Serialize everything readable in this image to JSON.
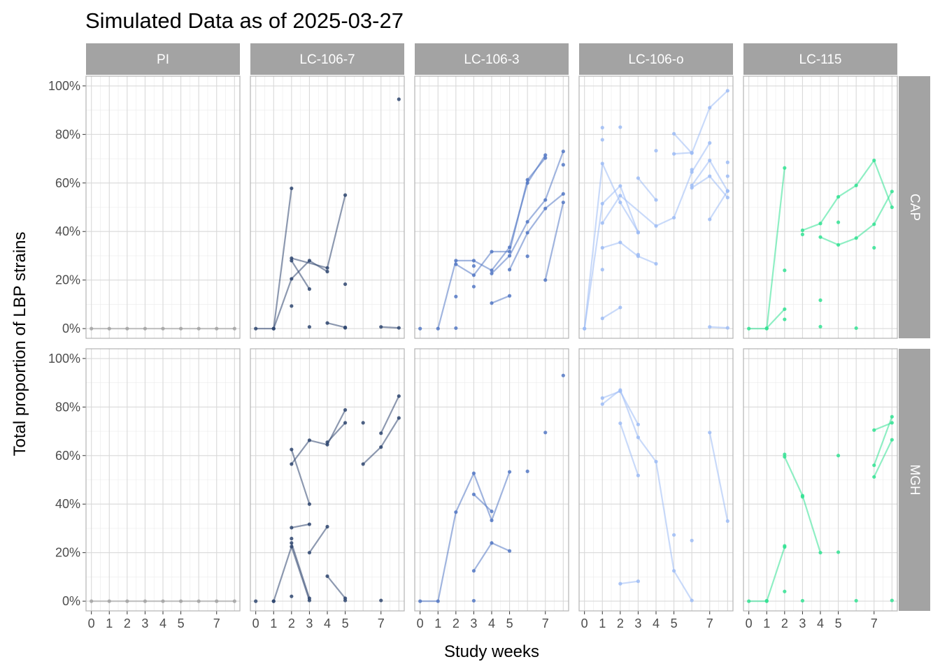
{
  "chart_data": {
    "type": "line",
    "title": "Simulated Data as of 2025-03-27",
    "xlabel": "Study weeks",
    "ylabel": "Total proportion of LBP strains",
    "xlim": [
      -0.3,
      8.3
    ],
    "ylim": [
      -4,
      104
    ],
    "x_ticks": [
      0,
      1,
      2,
      3,
      4,
      5,
      7
    ],
    "x_tick_labels": [
      "0",
      "1",
      "2",
      "3",
      "4",
      "5",
      "7"
    ],
    "y_ticks": [
      0,
      20,
      40,
      60,
      80,
      100
    ],
    "y_tick_labels": [
      "0%",
      "20%",
      "40%",
      "60%",
      "80%",
      "100%"
    ],
    "grid": true,
    "columns": [
      "PI",
      "LC-106-7",
      "LC-106-3",
      "LC-106-o",
      "LC-115"
    ],
    "rows": [
      "CAP",
      "MGH"
    ],
    "colors": {
      "PI": "#a3a3a3",
      "LC-106-7": "#2f4670",
      "LC-106-3": "#5478c4",
      "LC-106-o": "#9dbcf5",
      "LC-115": "#33e293"
    },
    "panels": [
      {
        "column": "PI",
        "row": "CAP",
        "lines": [
          [
            [
              0,
              0
            ],
            [
              1,
              0
            ],
            [
              2,
              0
            ],
            [
              3,
              0
            ],
            [
              4,
              0
            ],
            [
              5,
              0
            ],
            [
              6,
              0
            ],
            [
              7,
              0
            ],
            [
              8,
              0
            ]
          ]
        ],
        "points": []
      },
      {
        "column": "LC-106-7",
        "row": "CAP",
        "lines": [
          [
            [
              0,
              0
            ],
            [
              1,
              0
            ],
            [
              2,
              57.8
            ]
          ],
          [
            [
              1,
              0
            ],
            [
              2,
              20.5
            ],
            [
              3,
              28
            ],
            [
              4,
              23.5
            ]
          ],
          [
            [
              2,
              28
            ],
            [
              3,
              16.3
            ]
          ],
          [
            [
              2,
              29
            ],
            [
              4,
              25
            ],
            [
              5,
              55
            ]
          ],
          [
            [
              4,
              2.3
            ],
            [
              5,
              0.5
            ]
          ],
          [
            [
              7,
              0.7
            ],
            [
              8,
              0.3
            ]
          ]
        ],
        "points": [
          [
            2,
            9.3
          ],
          [
            3,
            0.7
          ],
          [
            5,
            18.3
          ],
          [
            5,
            0.3
          ],
          [
            8,
            94.5
          ]
        ]
      },
      {
        "column": "LC-106-3",
        "row": "CAP",
        "lines": [
          [
            [
              1,
              0
            ],
            [
              2,
              28
            ],
            [
              3,
              28
            ],
            [
              4,
              24
            ],
            [
              5,
              33.5
            ],
            [
              6,
              60
            ],
            [
              7,
              71.5
            ]
          ],
          [
            [
              2,
              26.5
            ],
            [
              3,
              22
            ],
            [
              4,
              31.7
            ],
            [
              5,
              31.7
            ],
            [
              6,
              61.3
            ],
            [
              7,
              70.3
            ]
          ],
          [
            [
              4,
              10.5
            ],
            [
              5,
              13.5
            ]
          ],
          [
            [
              4,
              22.7
            ],
            [
              5,
              30
            ],
            [
              6,
              44
            ],
            [
              7,
              53
            ],
            [
              8,
              73
            ]
          ],
          [
            [
              5,
              24.3
            ],
            [
              6,
              39.5
            ],
            [
              7,
              49.5
            ],
            [
              8,
              55.5
            ]
          ],
          [
            [
              7,
              20
            ],
            [
              8,
              52
            ]
          ]
        ],
        "points": [
          [
            0,
            0
          ],
          [
            2,
            13.2
          ],
          [
            2,
            0.2
          ],
          [
            3,
            25.8
          ],
          [
            3,
            17.3
          ],
          [
            6,
            29.8
          ],
          [
            8,
            67.5
          ]
        ]
      },
      {
        "column": "LC-106-o",
        "row": "CAP",
        "lines": [
          [
            [
              0,
              0
            ],
            [
              1,
              51.5
            ],
            [
              2,
              58.8
            ],
            [
              3,
              39.5
            ]
          ],
          [
            [
              0,
              0
            ],
            [
              1,
              68
            ],
            [
              2,
              52
            ],
            [
              3,
              39.8
            ]
          ],
          [
            [
              1,
              43.5
            ],
            [
              2,
              54.8
            ],
            [
              4,
              42.3
            ],
            [
              5,
              45.7
            ],
            [
              6,
              64.5
            ],
            [
              7,
              76.5
            ]
          ],
          [
            [
              1,
              33.3
            ],
            [
              2,
              35.5
            ],
            [
              3,
              29.8
            ],
            [
              4,
              26.7
            ]
          ],
          [
            [
              1,
              4.2
            ],
            [
              2,
              8.7
            ]
          ],
          [
            [
              3,
              62
            ],
            [
              4,
              53
            ]
          ],
          [
            [
              5,
              80.3
            ],
            [
              6,
              72.3
            ],
            [
              7,
              91
            ],
            [
              8,
              98
            ]
          ],
          [
            [
              5,
              72
            ],
            [
              6,
              72.5
            ]
          ],
          [
            [
              6,
              58
            ],
            [
              7,
              62.8
            ],
            [
              8,
              54
            ]
          ],
          [
            [
              6,
              59
            ],
            [
              7,
              69.3
            ],
            [
              8,
              56.7
            ]
          ],
          [
            [
              7,
              45
            ],
            [
              8,
              56.7
            ]
          ],
          [
            [
              7,
              0.7
            ],
            [
              8,
              0.3
            ]
          ]
        ],
        "points": [
          [
            1,
            82.8
          ],
          [
            1,
            77.8
          ],
          [
            1,
            24.3
          ],
          [
            2,
            83
          ],
          [
            3,
            30.5
          ],
          [
            4,
            73.3
          ],
          [
            6,
            65.5
          ],
          [
            8,
            68.5
          ],
          [
            8,
            62.8
          ]
        ]
      },
      {
        "column": "LC-115",
        "row": "CAP",
        "lines": [
          [
            [
              0,
              0
            ],
            [
              1,
              0
            ],
            [
              2,
              66.2
            ]
          ],
          [
            [
              1,
              0.2
            ],
            [
              2,
              8
            ]
          ],
          [
            [
              3,
              40.5
            ],
            [
              4,
              43.3
            ],
            [
              5,
              54.3
            ],
            [
              6,
              59
            ],
            [
              7,
              69.3
            ],
            [
              8,
              50
            ]
          ],
          [
            [
              4,
              37.7
            ],
            [
              5,
              34.5
            ],
            [
              6,
              37.3
            ],
            [
              7,
              43
            ],
            [
              8,
              56.5
            ]
          ]
        ],
        "points": [
          [
            2,
            24
          ],
          [
            2,
            3.8
          ],
          [
            3,
            38.8
          ],
          [
            4,
            11.7
          ],
          [
            4,
            0.8
          ],
          [
            5,
            43.8
          ],
          [
            6,
            0.2
          ],
          [
            7,
            33.3
          ]
        ]
      },
      {
        "column": "PI",
        "row": "MGH",
        "lines": [
          [
            [
              0,
              0
            ],
            [
              1,
              0
            ],
            [
              2,
              0
            ],
            [
              3,
              0
            ],
            [
              4,
              0
            ],
            [
              5,
              0
            ],
            [
              6,
              0
            ],
            [
              7,
              0
            ],
            [
              8,
              0
            ]
          ]
        ],
        "points": []
      },
      {
        "column": "LC-106-7",
        "row": "MGH",
        "lines": [
          [
            [
              1,
              0
            ],
            [
              2,
              22.5
            ],
            [
              3,
              0.3
            ]
          ],
          [
            [
              2,
              24
            ],
            [
              3,
              1.2
            ]
          ],
          [
            [
              2,
              56.5
            ],
            [
              3,
              66.3
            ],
            [
              4,
              64.5
            ],
            [
              5,
              78.8
            ]
          ],
          [
            [
              2,
              62.5
            ],
            [
              3,
              40
            ]
          ],
          [
            [
              2,
              30.3
            ],
            [
              3,
              31.7
            ]
          ],
          [
            [
              3,
              20
            ],
            [
              4,
              30.7
            ]
          ],
          [
            [
              4,
              10.3
            ],
            [
              5,
              1.2
            ]
          ],
          [
            [
              4,
              65.5
            ],
            [
              5,
              73.5
            ]
          ],
          [
            [
              6,
              56.5
            ],
            [
              7,
              63.5
            ],
            [
              8,
              75.5
            ]
          ],
          [
            [
              7,
              69.2
            ],
            [
              8,
              84.5
            ]
          ]
        ],
        "points": [
          [
            0,
            0
          ],
          [
            1,
            0
          ],
          [
            2,
            25.8
          ],
          [
            2,
            2
          ],
          [
            5,
            0.3
          ],
          [
            6,
            73.5
          ],
          [
            7,
            0.3
          ]
        ]
      },
      {
        "column": "LC-106-3",
        "row": "MGH",
        "lines": [
          [
            [
              0,
              0
            ],
            [
              1,
              0
            ],
            [
              2,
              36.7
            ],
            [
              3,
              52.7
            ],
            [
              4,
              33.3
            ],
            [
              5,
              53.3
            ]
          ],
          [
            [
              3,
              44
            ],
            [
              4,
              37
            ]
          ],
          [
            [
              3,
              12.5
            ],
            [
              4,
              24
            ],
            [
              5,
              20.7
            ]
          ]
        ],
        "points": [
          [
            3,
            0.2
          ],
          [
            6,
            53.5
          ],
          [
            7,
            69.5
          ],
          [
            8,
            93
          ]
        ]
      },
      {
        "column": "LC-106-o",
        "row": "MGH",
        "lines": [
          [
            [
              1,
              83.7
            ],
            [
              2,
              86.5
            ],
            [
              3,
              72.8
            ]
          ],
          [
            [
              1,
              81.2
            ],
            [
              2,
              87
            ],
            [
              3,
              67.5
            ],
            [
              4,
              57.5
            ],
            [
              5,
              12.5
            ],
            [
              6,
              0.3
            ]
          ],
          [
            [
              2,
              73.3
            ],
            [
              3,
              51.8
            ]
          ],
          [
            [
              2,
              7.2
            ],
            [
              3,
              8.2
            ]
          ],
          [
            [
              7,
              69.5
            ],
            [
              8,
              33
            ]
          ]
        ],
        "points": [
          [
            5,
            27.3
          ],
          [
            6,
            25
          ]
        ]
      },
      {
        "column": "LC-115",
        "row": "MGH",
        "lines": [
          [
            [
              0,
              0
            ],
            [
              1,
              0
            ],
            [
              2,
              22.3
            ]
          ],
          [
            [
              2,
              59.5
            ],
            [
              3,
              43.5
            ],
            [
              4,
              20
            ]
          ],
          [
            [
              7,
              56
            ],
            [
              8,
              76
            ]
          ],
          [
            [
              7,
              51.2
            ],
            [
              8,
              66.5
            ]
          ],
          [
            [
              7,
              70.5
            ],
            [
              8,
              73.5
            ]
          ]
        ],
        "points": [
          [
            1,
            0.2
          ],
          [
            2,
            60.5
          ],
          [
            2,
            22.8
          ],
          [
            2,
            4
          ],
          [
            3,
            0.2
          ],
          [
            3,
            43
          ],
          [
            5,
            60
          ],
          [
            5,
            20.2
          ],
          [
            6,
            0.2
          ],
          [
            8,
            0.3
          ]
        ]
      }
    ]
  }
}
